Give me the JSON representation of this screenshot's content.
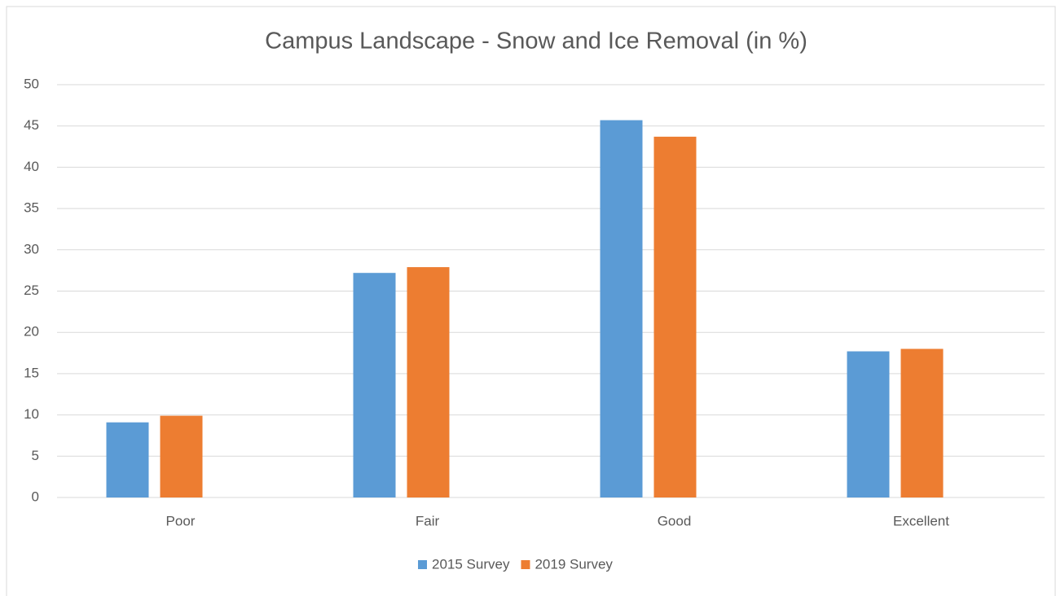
{
  "chart_data": {
    "type": "bar",
    "title": "Campus Landscape -  Snow and Ice Removal (in %)",
    "categories": [
      "Poor",
      "Fair",
      "Good",
      "Excellent"
    ],
    "series": [
      {
        "name": "2015 Survey",
        "color": "#5b9bd5",
        "values": [
          9.1,
          27.2,
          45.7,
          17.7
        ]
      },
      {
        "name": "2019 Survey",
        "color": "#ed7d31",
        "values": [
          9.9,
          27.9,
          43.7,
          18.0
        ]
      }
    ],
    "ylim": [
      0,
      50
    ],
    "yticks": [
      0,
      5,
      10,
      15,
      20,
      25,
      30,
      35,
      40,
      45,
      50
    ],
    "grid": true,
    "legend": "bottom"
  }
}
